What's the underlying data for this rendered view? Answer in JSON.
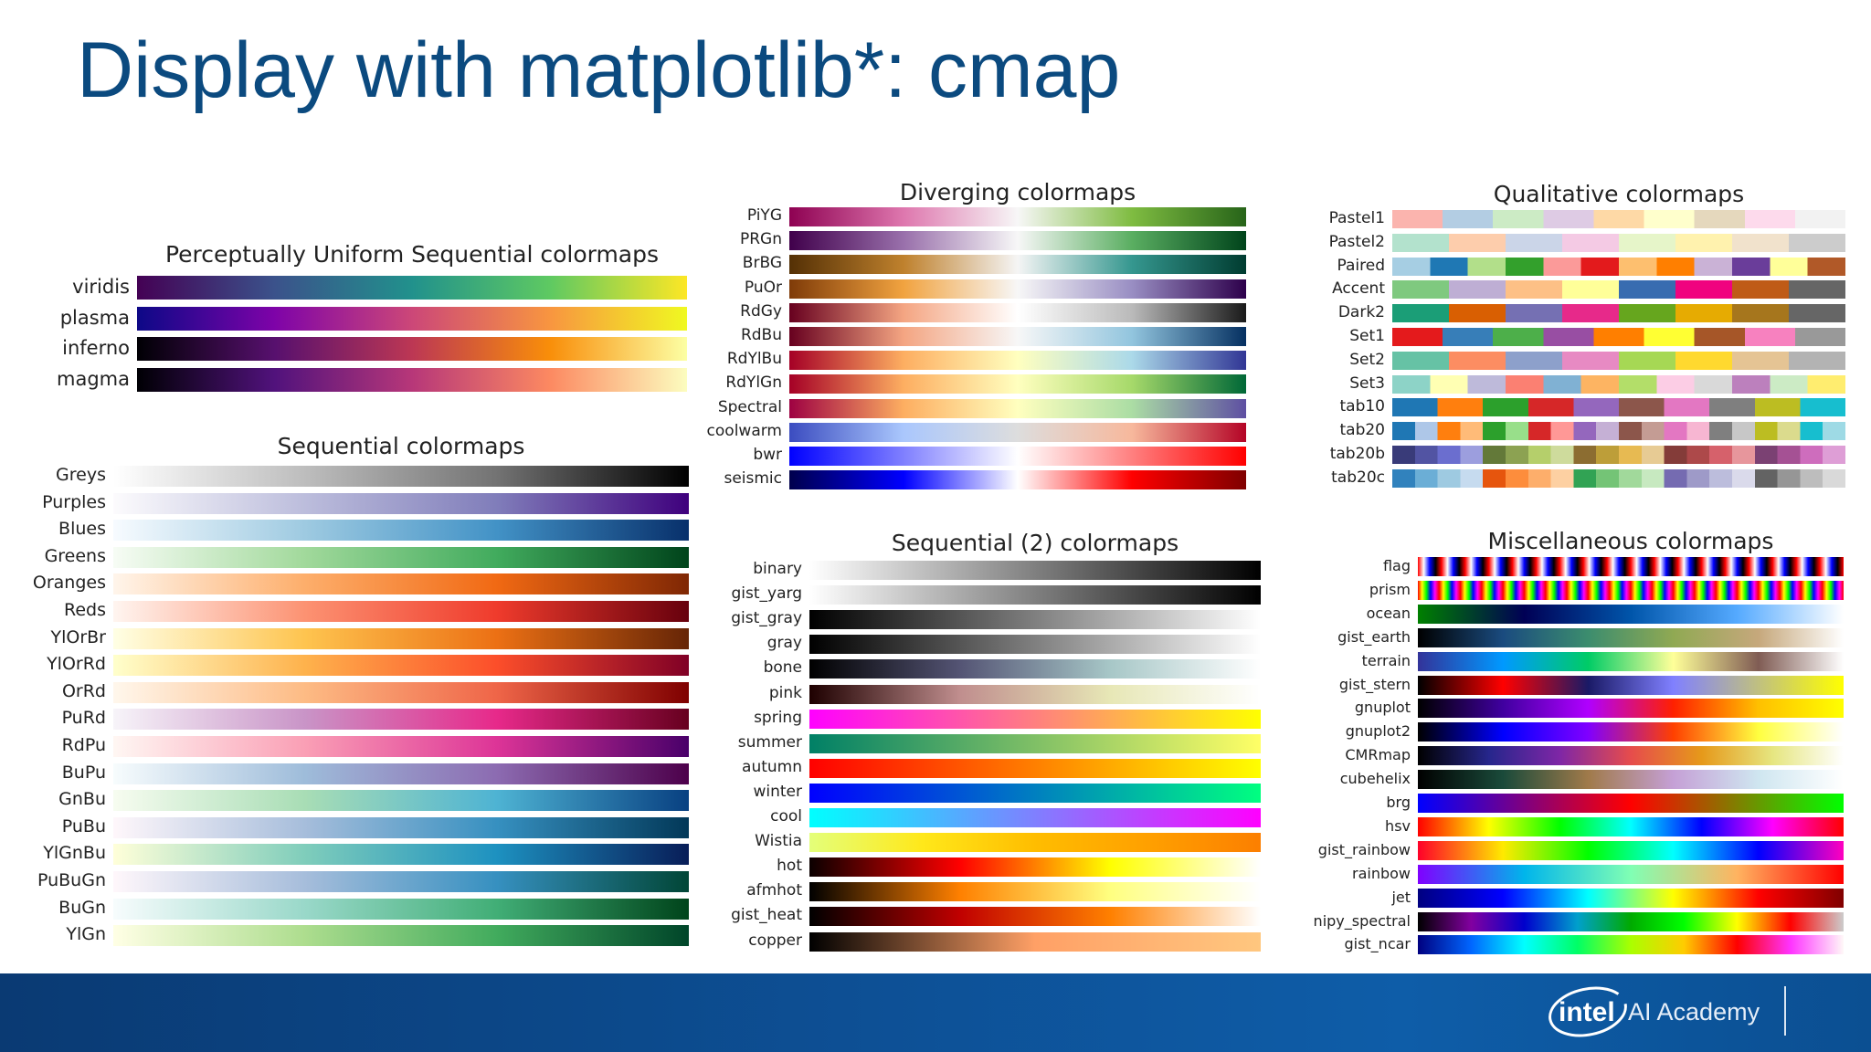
{
  "slide": {
    "title": "Display with matplotlib*: cmap",
    "brand": "AI Academy",
    "logo_text": "intel"
  },
  "panels": [
    {
      "id": "perceptual",
      "title": "Perceptually Uniform Sequential colormaps",
      "cmaps": [
        {
          "name": "viridis",
          "colors": [
            "#440154",
            "#3b528b",
            "#21918c",
            "#5ec962",
            "#fde725"
          ]
        },
        {
          "name": "plasma",
          "colors": [
            "#0d0887",
            "#7e03a8",
            "#cc4778",
            "#f89540",
            "#f0f921"
          ]
        },
        {
          "name": "inferno",
          "colors": [
            "#000004",
            "#57106e",
            "#bc3754",
            "#f98e09",
            "#fcffa4"
          ]
        },
        {
          "name": "magma",
          "colors": [
            "#000004",
            "#51127c",
            "#b73779",
            "#fc8961",
            "#fcfdbf"
          ]
        }
      ]
    },
    {
      "id": "sequential",
      "title": "Sequential colormaps",
      "cmaps": [
        {
          "name": "Greys",
          "colors": [
            "#ffffff",
            "#bdbdbd",
            "#737373",
            "#000000"
          ]
        },
        {
          "name": "Purples",
          "colors": [
            "#fcfbfd",
            "#bcbddc",
            "#807dba",
            "#3f007d"
          ]
        },
        {
          "name": "Blues",
          "colors": [
            "#f7fbff",
            "#9ecae1",
            "#4292c6",
            "#08306b"
          ]
        },
        {
          "name": "Greens",
          "colors": [
            "#f7fcf5",
            "#a1d99b",
            "#41ab5d",
            "#00441b"
          ]
        },
        {
          "name": "Oranges",
          "colors": [
            "#fff5eb",
            "#fdae6b",
            "#f16913",
            "#7f2704"
          ]
        },
        {
          "name": "Reds",
          "colors": [
            "#fff5f0",
            "#fc9272",
            "#ef3b2c",
            "#67000d"
          ]
        },
        {
          "name": "YlOrBr",
          "colors": [
            "#ffffe5",
            "#fec44f",
            "#ec7014",
            "#662506"
          ]
        },
        {
          "name": "YlOrRd",
          "colors": [
            "#ffffcc",
            "#feb24c",
            "#fc4e2a",
            "#800026"
          ]
        },
        {
          "name": "OrRd",
          "colors": [
            "#fff7ec",
            "#fdbb84",
            "#ef6548",
            "#7f0000"
          ]
        },
        {
          "name": "PuRd",
          "colors": [
            "#f7f4f9",
            "#c994c7",
            "#e7298a",
            "#67001f"
          ]
        },
        {
          "name": "RdPu",
          "colors": [
            "#fff7f3",
            "#fa9fb5",
            "#dd3497",
            "#49006a"
          ]
        },
        {
          "name": "BuPu",
          "colors": [
            "#f7fcfd",
            "#9ebcda",
            "#8c6bb1",
            "#4d004b"
          ]
        },
        {
          "name": "GnBu",
          "colors": [
            "#f7fcf0",
            "#a8ddb5",
            "#4eb3d3",
            "#084081"
          ]
        },
        {
          "name": "PuBu",
          "colors": [
            "#fff7fb",
            "#a6bddb",
            "#3690c0",
            "#023858"
          ]
        },
        {
          "name": "YlGnBu",
          "colors": [
            "#ffffd9",
            "#7fcdbb",
            "#1d91c0",
            "#081d58"
          ]
        },
        {
          "name": "PuBuGn",
          "colors": [
            "#fff7fb",
            "#a6bddb",
            "#3690c0",
            "#014636"
          ]
        },
        {
          "name": "BuGn",
          "colors": [
            "#f7fcfd",
            "#99d8c9",
            "#41ae76",
            "#00441b"
          ]
        },
        {
          "name": "YlGn",
          "colors": [
            "#ffffe5",
            "#addd8e",
            "#41ab5d",
            "#004529"
          ]
        }
      ]
    },
    {
      "id": "diverging",
      "title": "Diverging colormaps",
      "cmaps": [
        {
          "name": "PiYG",
          "colors": [
            "#8e0152",
            "#de77ae",
            "#f7f7f7",
            "#7fbc41",
            "#276419"
          ]
        },
        {
          "name": "PRGn",
          "colors": [
            "#40004b",
            "#9970ab",
            "#f7f7f7",
            "#5aae61",
            "#00441b"
          ]
        },
        {
          "name": "BrBG",
          "colors": [
            "#543005",
            "#bf812d",
            "#f5f5f5",
            "#35978f",
            "#003c30"
          ]
        },
        {
          "name": "PuOr",
          "colors": [
            "#7f3b08",
            "#f1a340",
            "#f7f7f7",
            "#998ec3",
            "#2d004b"
          ]
        },
        {
          "name": "RdGy",
          "colors": [
            "#67001f",
            "#f4a582",
            "#ffffff",
            "#bababa",
            "#1a1a1a"
          ]
        },
        {
          "name": "RdBu",
          "colors": [
            "#67001f",
            "#f4a582",
            "#f7f7f7",
            "#92c5de",
            "#053061"
          ]
        },
        {
          "name": "RdYlBu",
          "colors": [
            "#a50026",
            "#fdae61",
            "#ffffbf",
            "#abd9e9",
            "#313695"
          ]
        },
        {
          "name": "RdYlGn",
          "colors": [
            "#a50026",
            "#fdae61",
            "#ffffbf",
            "#a6d96a",
            "#006837"
          ]
        },
        {
          "name": "Spectral",
          "colors": [
            "#9e0142",
            "#fdae61",
            "#ffffbf",
            "#abdda4",
            "#5e4fa2"
          ]
        },
        {
          "name": "coolwarm",
          "colors": [
            "#3b4cc0",
            "#aac7fd",
            "#dddddd",
            "#f7b89c",
            "#b40426"
          ]
        },
        {
          "name": "bwr",
          "colors": [
            "#0000ff",
            "#ffffff",
            "#ff0000"
          ]
        },
        {
          "name": "seismic",
          "colors": [
            "#00004c",
            "#0000ff",
            "#ffffff",
            "#ff0000",
            "#7f0000"
          ]
        }
      ]
    },
    {
      "id": "sequential2",
      "title": "Sequential (2) colormaps",
      "cmaps": [
        {
          "name": "binary",
          "colors": [
            "#ffffff",
            "#000000"
          ]
        },
        {
          "name": "gist_yarg",
          "colors": [
            "#ffffff",
            "#000000"
          ]
        },
        {
          "name": "gist_gray",
          "colors": [
            "#000000",
            "#ffffff"
          ]
        },
        {
          "name": "gray",
          "colors": [
            "#000000",
            "#ffffff"
          ]
        },
        {
          "name": "bone",
          "colors": [
            "#000000",
            "#545474",
            "#a7c7c7",
            "#ffffff"
          ]
        },
        {
          "name": "pink",
          "colors": [
            "#1e0000",
            "#c08e8e",
            "#e7e7b6",
            "#ffffff"
          ]
        },
        {
          "name": "spring",
          "colors": [
            "#ff00ff",
            "#ffff00"
          ]
        },
        {
          "name": "summer",
          "colors": [
            "#008066",
            "#ffff66"
          ]
        },
        {
          "name": "autumn",
          "colors": [
            "#ff0000",
            "#ffff00"
          ]
        },
        {
          "name": "winter",
          "colors": [
            "#0000ff",
            "#00ff80"
          ]
        },
        {
          "name": "cool",
          "colors": [
            "#00ffff",
            "#ff00ff"
          ]
        },
        {
          "name": "Wistia",
          "colors": [
            "#e4ff7a",
            "#ffe81a",
            "#ffbd00",
            "#ffa000",
            "#fc7f00"
          ]
        },
        {
          "name": "hot",
          "colors": [
            "#0b0000",
            "#ff0000",
            "#ffff00",
            "#ffffff"
          ]
        },
        {
          "name": "afmhot",
          "colors": [
            "#000000",
            "#ff8000",
            "#ffff80",
            "#ffffff"
          ]
        },
        {
          "name": "gist_heat",
          "colors": [
            "#000000",
            "#c00000",
            "#ff8000",
            "#ffffff"
          ]
        },
        {
          "name": "copper",
          "colors": [
            "#000000",
            "#ffa066",
            "#ffc77f"
          ]
        }
      ]
    },
    {
      "id": "qualitative",
      "title": "Qualitative colormaps",
      "cmaps": [
        {
          "name": "Pastel1",
          "discrete": true,
          "colors": [
            "#fbb4ae",
            "#b3cde3",
            "#ccebc5",
            "#decbe4",
            "#fed9a6",
            "#ffffcc",
            "#e5d8bd",
            "#fddaec",
            "#f2f2f2"
          ]
        },
        {
          "name": "Pastel2",
          "discrete": true,
          "colors": [
            "#b3e2cd",
            "#fdcdac",
            "#cbd5e8",
            "#f4cae4",
            "#e6f5c9",
            "#fff2ae",
            "#f1e2cc",
            "#cccccc"
          ]
        },
        {
          "name": "Paired",
          "discrete": true,
          "colors": [
            "#a6cee3",
            "#1f78b4",
            "#b2df8a",
            "#33a02c",
            "#fb9a99",
            "#e31a1c",
            "#fdbf6f",
            "#ff7f00",
            "#cab2d6",
            "#6a3d9a",
            "#ffff99",
            "#b15928"
          ]
        },
        {
          "name": "Accent",
          "discrete": true,
          "colors": [
            "#7fc97f",
            "#beaed4",
            "#fdc086",
            "#ffff99",
            "#386cb0",
            "#f0027f",
            "#bf5b17",
            "#666666"
          ]
        },
        {
          "name": "Dark2",
          "discrete": true,
          "colors": [
            "#1b9e77",
            "#d95f02",
            "#7570b3",
            "#e7298a",
            "#66a61e",
            "#e6ab02",
            "#a6761d",
            "#666666"
          ]
        },
        {
          "name": "Set1",
          "discrete": true,
          "colors": [
            "#e41a1c",
            "#377eb8",
            "#4daf4a",
            "#984ea3",
            "#ff7f00",
            "#ffff33",
            "#a65628",
            "#f781bf",
            "#999999"
          ]
        },
        {
          "name": "Set2",
          "discrete": true,
          "colors": [
            "#66c2a5",
            "#fc8d62",
            "#8da0cb",
            "#e78ac3",
            "#a6d854",
            "#ffd92f",
            "#e5c494",
            "#b3b3b3"
          ]
        },
        {
          "name": "Set3",
          "discrete": true,
          "colors": [
            "#8dd3c7",
            "#ffffb3",
            "#bebada",
            "#fb8072",
            "#80b1d3",
            "#fdb462",
            "#b3de69",
            "#fccde5",
            "#d9d9d9",
            "#bc80bd",
            "#ccebc5",
            "#ffed6f"
          ]
        },
        {
          "name": "tab10",
          "discrete": true,
          "colors": [
            "#1f77b4",
            "#ff7f0e",
            "#2ca02c",
            "#d62728",
            "#9467bd",
            "#8c564b",
            "#e377c2",
            "#7f7f7f",
            "#bcbd22",
            "#17becf"
          ]
        },
        {
          "name": "tab20",
          "discrete": true,
          "colors": [
            "#1f77b4",
            "#aec7e8",
            "#ff7f0e",
            "#ffbb78",
            "#2ca02c",
            "#98df8a",
            "#d62728",
            "#ff9896",
            "#9467bd",
            "#c5b0d5",
            "#8c564b",
            "#c49c94",
            "#e377c2",
            "#f7b6d2",
            "#7f7f7f",
            "#c7c7c7",
            "#bcbd22",
            "#dbdb8d",
            "#17becf",
            "#9edae5"
          ]
        },
        {
          "name": "tab20b",
          "discrete": true,
          "colors": [
            "#393b79",
            "#5254a3",
            "#6b6ecf",
            "#9c9ede",
            "#637939",
            "#8ca252",
            "#b5cf6b",
            "#cedb9c",
            "#8c6d31",
            "#bd9e39",
            "#e7ba52",
            "#e7cb94",
            "#843c39",
            "#ad494a",
            "#d6616b",
            "#e7969c",
            "#7b4173",
            "#a55194",
            "#ce6dbd",
            "#de9ed6"
          ]
        },
        {
          "name": "tab20c",
          "discrete": true,
          "colors": [
            "#3182bd",
            "#6baed6",
            "#9ecae1",
            "#c6dbef",
            "#e6550d",
            "#fd8d3c",
            "#fdae6b",
            "#fdd0a2",
            "#31a354",
            "#74c476",
            "#a1d99b",
            "#c7e9c0",
            "#756bb1",
            "#9e9ac8",
            "#bcbddc",
            "#dadaeb",
            "#636363",
            "#969696",
            "#bdbdbd",
            "#d9d9d9"
          ]
        }
      ]
    },
    {
      "id": "misc",
      "title": "Miscellaneous colormaps",
      "cmaps": [
        {
          "name": "flag",
          "repeat": 18,
          "colors": [
            "#ff0000",
            "#ffffff",
            "#0000ff",
            "#000000"
          ]
        },
        {
          "name": "prism",
          "repeat": 20,
          "colors": [
            "#ff0000",
            "#ffff00",
            "#00ff00",
            "#0000ff",
            "#ff00ff"
          ]
        },
        {
          "name": "ocean",
          "colors": [
            "#008000",
            "#000055",
            "#0055aa",
            "#55aaff",
            "#ffffff"
          ]
        },
        {
          "name": "gist_earth",
          "colors": [
            "#000000",
            "#1a4b7f",
            "#3c8d6e",
            "#90a953",
            "#c6a87c",
            "#ffffff"
          ]
        },
        {
          "name": "terrain",
          "colors": [
            "#333399",
            "#0099ff",
            "#00cc66",
            "#ffff99",
            "#805c54",
            "#ffffff"
          ]
        },
        {
          "name": "gist_stern",
          "colors": [
            "#000000",
            "#ff0000",
            "#1a1a66",
            "#8080ff",
            "#c0c080",
            "#ffff00"
          ]
        },
        {
          "name": "gnuplot",
          "colors": [
            "#000000",
            "#4000a0",
            "#b000ff",
            "#ff2000",
            "#ffc000",
            "#ffff00"
          ]
        },
        {
          "name": "gnuplot2",
          "colors": [
            "#000000",
            "#0000ff",
            "#8000ff",
            "#ff4000",
            "#ffff40",
            "#ffffff"
          ]
        },
        {
          "name": "CMRmap",
          "colors": [
            "#000000",
            "#26268c",
            "#7f26a6",
            "#e64c4c",
            "#e6991a",
            "#e6e680",
            "#ffffff"
          ]
        },
        {
          "name": "cubehelix",
          "colors": [
            "#000000",
            "#1a4a3a",
            "#a07a4a",
            "#c5a0d6",
            "#cfe6f0",
            "#ffffff"
          ]
        },
        {
          "name": "brg",
          "colors": [
            "#0000ff",
            "#ff0000",
            "#00ff00"
          ]
        },
        {
          "name": "hsv",
          "colors": [
            "#ff0000",
            "#ffff00",
            "#00ff00",
            "#00ffff",
            "#0000ff",
            "#ff00ff",
            "#ff0000"
          ]
        },
        {
          "name": "gist_rainbow",
          "colors": [
            "#ff0029",
            "#ffea00",
            "#00ff00",
            "#00ffff",
            "#0000ff",
            "#ff00bf"
          ]
        },
        {
          "name": "rainbow",
          "colors": [
            "#8000ff",
            "#00b5eb",
            "#80ffb4",
            "#ffb360",
            "#ff0000"
          ]
        },
        {
          "name": "jet",
          "colors": [
            "#000080",
            "#0000ff",
            "#00ffff",
            "#ffff00",
            "#ff0000",
            "#800000"
          ]
        },
        {
          "name": "nipy_spectral",
          "colors": [
            "#000000",
            "#8200a0",
            "#0000cc",
            "#00a0cc",
            "#00aa00",
            "#00ff00",
            "#ffff00",
            "#ff0000",
            "#cccccc"
          ]
        },
        {
          "name": "gist_ncar",
          "colors": [
            "#000080",
            "#0066ff",
            "#00ffff",
            "#00ff66",
            "#aaff00",
            "#ffcc00",
            "#ff0000",
            "#ff33ff",
            "#fff8f8"
          ]
        }
      ]
    }
  ]
}
